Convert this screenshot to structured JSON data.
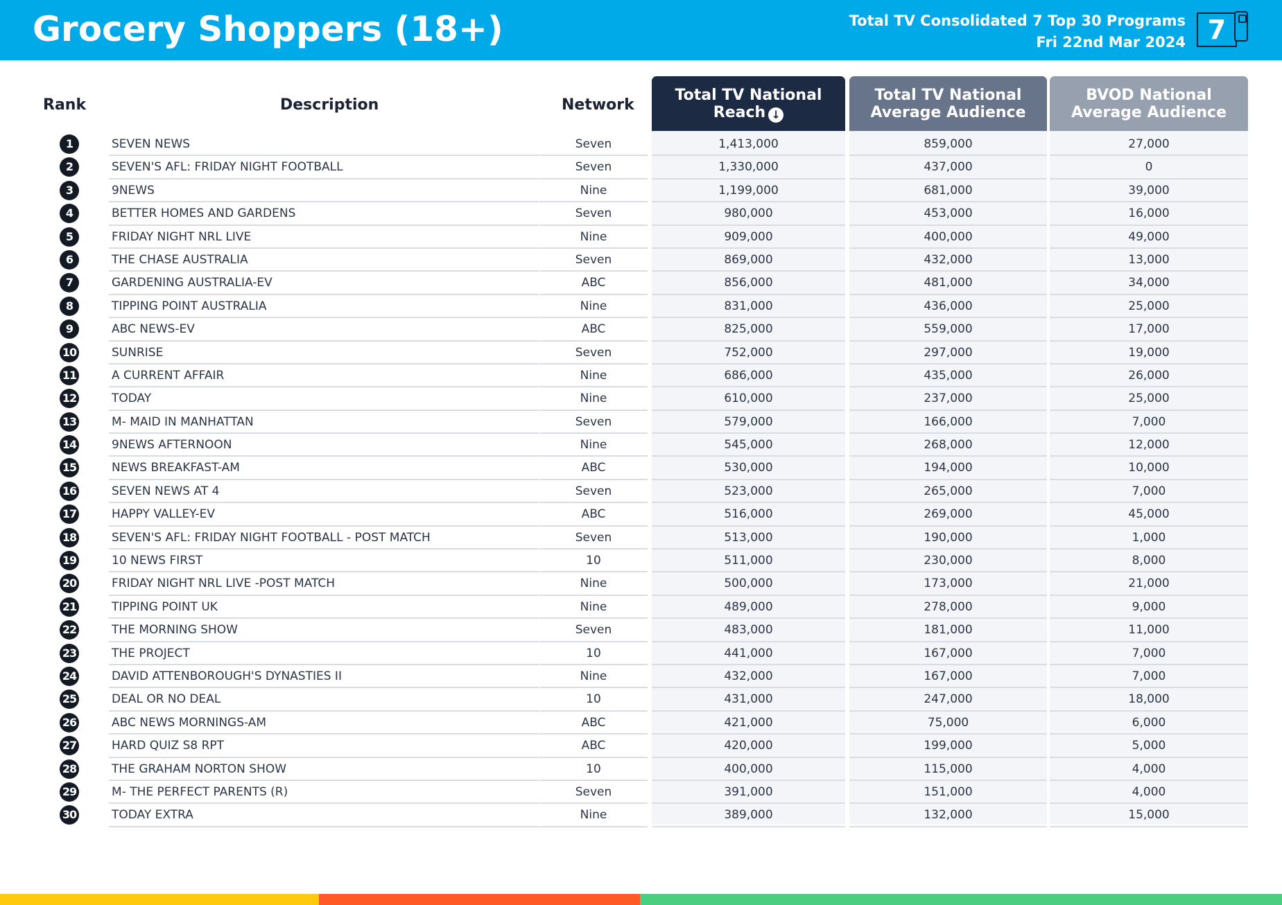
{
  "header": {
    "title": "Grocery Shoppers (18+)",
    "subtitle_line1": "Total TV Consolidated 7 Top 30 Programs",
    "subtitle_line2": "Fri 22nd Mar 2024",
    "logo_text": "7"
  },
  "columns": {
    "rank": "Rank",
    "description": "Description",
    "network": "Network",
    "reach_line1": "Total TV National",
    "reach_line2": "Reach",
    "avg_line1": "Total TV National",
    "avg_line2": "Average Audience",
    "bvod_line1": "BVOD National",
    "bvod_line2": "Average Audience"
  },
  "icons": {
    "sort": "arrow-down-circle-icon",
    "logo": "phone-7-logo-icon"
  },
  "colors": {
    "topbar": "#00a9e8",
    "reach_header": "#1c2a44",
    "avg_header": "#687489",
    "bvod_header": "#97a0ae",
    "footer_yellow": "#ffc90e",
    "footer_orange": "#ff5a26",
    "footer_green": "#4cce82"
  },
  "rows": [
    {
      "rank": "1",
      "description": "SEVEN NEWS",
      "network": "Seven",
      "reach": "1,413,000",
      "avg": "859,000",
      "bvod": "27,000"
    },
    {
      "rank": "2",
      "description": "SEVEN'S AFL: FRIDAY NIGHT FOOTBALL",
      "network": "Seven",
      "reach": "1,330,000",
      "avg": "437,000",
      "bvod": "0"
    },
    {
      "rank": "3",
      "description": "9NEWS",
      "network": "Nine",
      "reach": "1,199,000",
      "avg": "681,000",
      "bvod": "39,000"
    },
    {
      "rank": "4",
      "description": "BETTER HOMES AND GARDENS",
      "network": "Seven",
      "reach": "980,000",
      "avg": "453,000",
      "bvod": "16,000"
    },
    {
      "rank": "5",
      "description": "FRIDAY NIGHT NRL LIVE",
      "network": "Nine",
      "reach": "909,000",
      "avg": "400,000",
      "bvod": "49,000"
    },
    {
      "rank": "6",
      "description": "THE CHASE AUSTRALIA",
      "network": "Seven",
      "reach": "869,000",
      "avg": "432,000",
      "bvod": "13,000"
    },
    {
      "rank": "7",
      "description": "GARDENING AUSTRALIA-EV",
      "network": "ABC",
      "reach": "856,000",
      "avg": "481,000",
      "bvod": "34,000"
    },
    {
      "rank": "8",
      "description": "TIPPING POINT AUSTRALIA",
      "network": "Nine",
      "reach": "831,000",
      "avg": "436,000",
      "bvod": "25,000"
    },
    {
      "rank": "9",
      "description": "ABC NEWS-EV",
      "network": "ABC",
      "reach": "825,000",
      "avg": "559,000",
      "bvod": "17,000"
    },
    {
      "rank": "10",
      "description": "SUNRISE",
      "network": "Seven",
      "reach": "752,000",
      "avg": "297,000",
      "bvod": "19,000"
    },
    {
      "rank": "11",
      "description": "A CURRENT AFFAIR",
      "network": "Nine",
      "reach": "686,000",
      "avg": "435,000",
      "bvod": "26,000"
    },
    {
      "rank": "12",
      "description": "TODAY",
      "network": "Nine",
      "reach": "610,000",
      "avg": "237,000",
      "bvod": "25,000"
    },
    {
      "rank": "13",
      "description": "M- MAID IN MANHATTAN",
      "network": "Seven",
      "reach": "579,000",
      "avg": "166,000",
      "bvod": "7,000"
    },
    {
      "rank": "14",
      "description": "9NEWS AFTERNOON",
      "network": "Nine",
      "reach": "545,000",
      "avg": "268,000",
      "bvod": "12,000"
    },
    {
      "rank": "15",
      "description": "NEWS BREAKFAST-AM",
      "network": "ABC",
      "reach": "530,000",
      "avg": "194,000",
      "bvod": "10,000"
    },
    {
      "rank": "16",
      "description": "SEVEN NEWS AT 4",
      "network": "Seven",
      "reach": "523,000",
      "avg": "265,000",
      "bvod": "7,000"
    },
    {
      "rank": "17",
      "description": "HAPPY VALLEY-EV",
      "network": "ABC",
      "reach": "516,000",
      "avg": "269,000",
      "bvod": "45,000"
    },
    {
      "rank": "18",
      "description": "SEVEN'S AFL: FRIDAY NIGHT FOOTBALL - POST MATCH",
      "network": "Seven",
      "reach": "513,000",
      "avg": "190,000",
      "bvod": "1,000"
    },
    {
      "rank": "19",
      "description": "10 NEWS FIRST",
      "network": "10",
      "reach": "511,000",
      "avg": "230,000",
      "bvod": "8,000"
    },
    {
      "rank": "20",
      "description": "FRIDAY NIGHT NRL LIVE -POST MATCH",
      "network": "Nine",
      "reach": "500,000",
      "avg": "173,000",
      "bvod": "21,000"
    },
    {
      "rank": "21",
      "description": "TIPPING POINT UK",
      "network": "Nine",
      "reach": "489,000",
      "avg": "278,000",
      "bvod": "9,000"
    },
    {
      "rank": "22",
      "description": "THE MORNING SHOW",
      "network": "Seven",
      "reach": "483,000",
      "avg": "181,000",
      "bvod": "11,000"
    },
    {
      "rank": "23",
      "description": "THE PROJECT",
      "network": "10",
      "reach": "441,000",
      "avg": "167,000",
      "bvod": "7,000"
    },
    {
      "rank": "24",
      "description": "DAVID ATTENBOROUGH'S DYNASTIES II",
      "network": "Nine",
      "reach": "432,000",
      "avg": "167,000",
      "bvod": "7,000"
    },
    {
      "rank": "25",
      "description": "DEAL OR NO DEAL",
      "network": "10",
      "reach": "431,000",
      "avg": "247,000",
      "bvod": "18,000"
    },
    {
      "rank": "26",
      "description": "ABC NEWS MORNINGS-AM",
      "network": "ABC",
      "reach": "421,000",
      "avg": "75,000",
      "bvod": "6,000"
    },
    {
      "rank": "27",
      "description": "HARD QUIZ S8 RPT",
      "network": "ABC",
      "reach": "420,000",
      "avg": "199,000",
      "bvod": "5,000"
    },
    {
      "rank": "28",
      "description": "THE GRAHAM NORTON SHOW",
      "network": "10",
      "reach": "400,000",
      "avg": "115,000",
      "bvod": "4,000"
    },
    {
      "rank": "29",
      "description": "M- THE PERFECT PARENTS (R)",
      "network": "Seven",
      "reach": "391,000",
      "avg": "151,000",
      "bvod": "4,000"
    },
    {
      "rank": "30",
      "description": "TODAY EXTRA",
      "network": "Nine",
      "reach": "389,000",
      "avg": "132,000",
      "bvod": "15,000"
    }
  ]
}
